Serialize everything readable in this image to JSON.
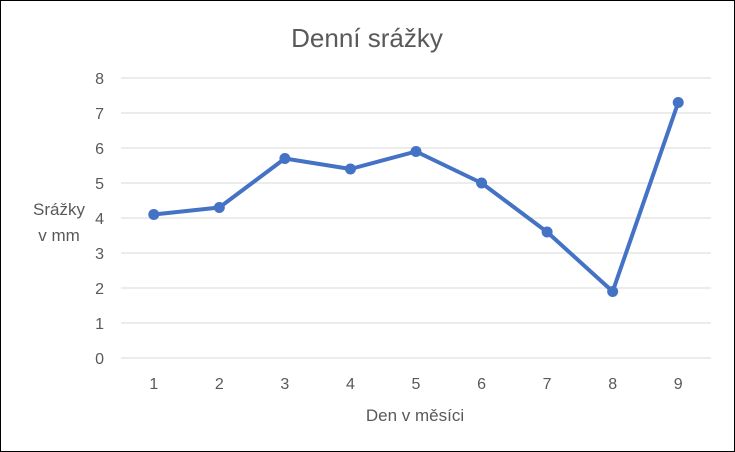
{
  "colors": {
    "series": "#4472c4",
    "text": "#595959",
    "grid": "#d9d9d9"
  },
  "chart_data": {
    "type": "line",
    "title": "Denní srážky",
    "xlabel": "Den v měsíci",
    "ylabel": "Srážky v mm",
    "ylabel_lines": [
      "Srážky",
      "v mm"
    ],
    "categories": [
      "1",
      "2",
      "3",
      "4",
      "5",
      "6",
      "7",
      "8",
      "9"
    ],
    "series": [
      {
        "name": "",
        "values": [
          4.1,
          4.3,
          5.7,
          5.4,
          5.9,
          5.0,
          3.6,
          1.9,
          7.3
        ]
      }
    ],
    "ylim": [
      0,
      8
    ],
    "yticks": [
      0,
      1,
      2,
      3,
      4,
      5,
      6,
      7,
      8
    ],
    "grid": true,
    "legend": "none",
    "markers": true
  }
}
